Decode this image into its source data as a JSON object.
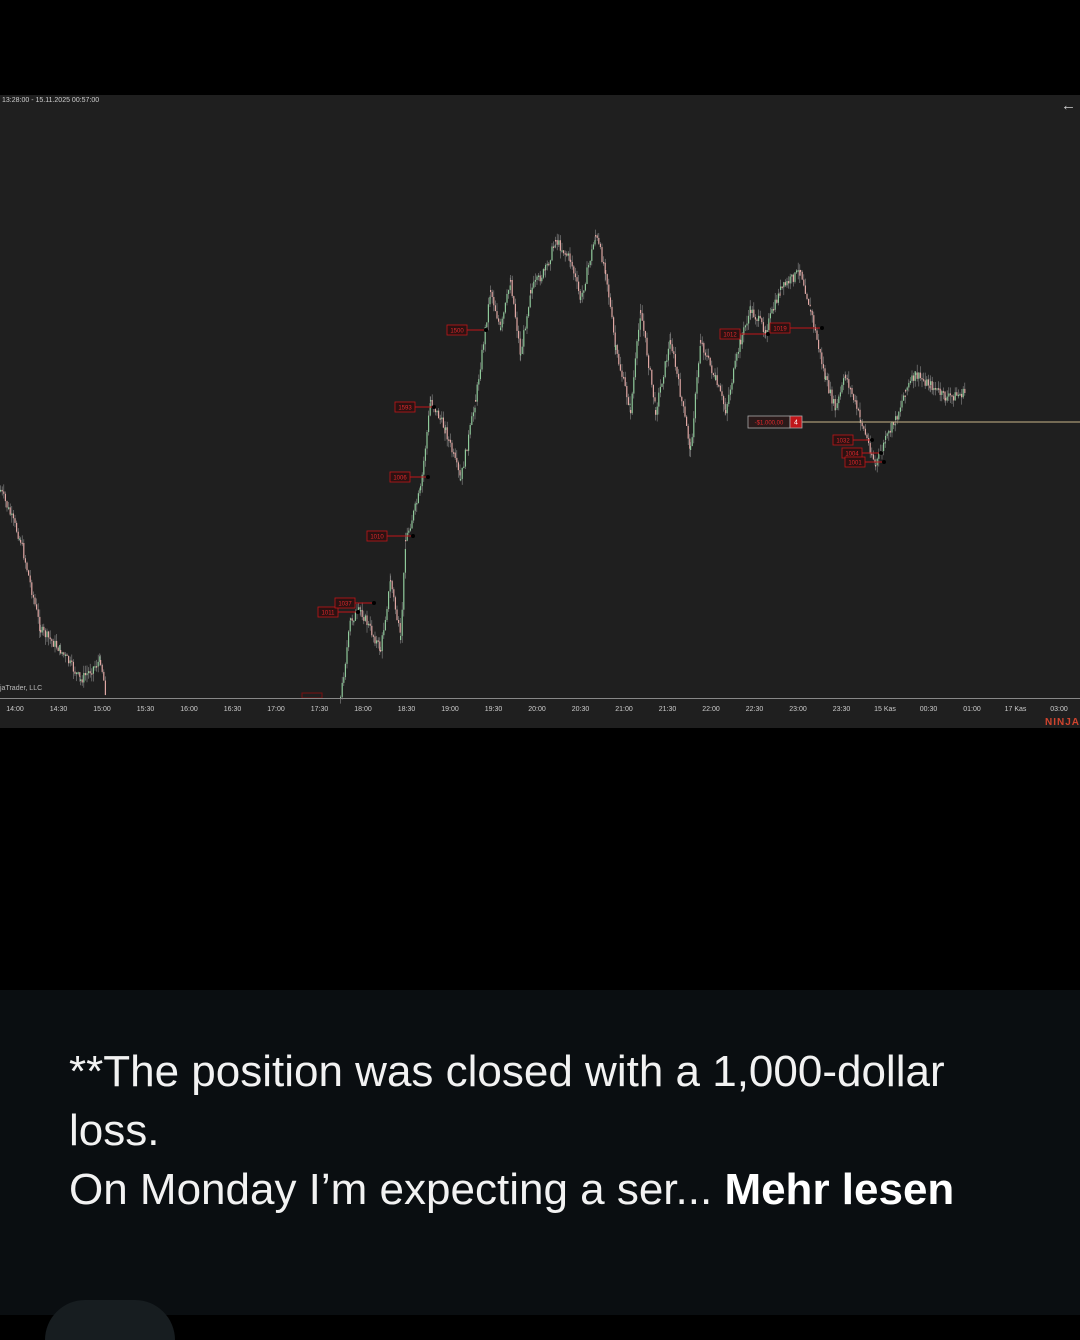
{
  "chart": {
    "date_range": "13:28:00 - 15.11.2025 00:57:00",
    "back_icon": "arrow-left-icon",
    "copyright": "jaTrader, LLC",
    "brand": "NINJA",
    "time_ticks": [
      "14:00",
      "14:30",
      "15:00",
      "15:30",
      "16:00",
      "16:30",
      "17:00",
      "17:30",
      "18:00",
      "18:30",
      "19:00",
      "19:30",
      "20:00",
      "20:30",
      "21:00",
      "21:30",
      "22:00",
      "22:30",
      "23:00",
      "23:30",
      "15 Kas",
      "00:30",
      "01:00",
      "17 Kas",
      "03:00"
    ],
    "trade_markers": [
      "1011",
      "1037",
      "1010",
      "1006",
      "1593",
      "1500",
      "1012",
      "1019",
      "1032",
      "1004",
      "1001"
    ],
    "position": {
      "pnl": "-$1.000,00",
      "quantity": "4"
    },
    "colors": {
      "background": "#1f1f1f",
      "up_candle": "#8fc99a",
      "down_candle": "#e0a8a4",
      "marker": "#c0161a",
      "position_line": "#c8b48a",
      "brand": "#d0442e"
    }
  },
  "post": {
    "line1": "**The position was closed with a 1,000-dollar loss.",
    "line2": "On Monday I’m expecting a ser...",
    "more_label": "Mehr lesen"
  }
}
